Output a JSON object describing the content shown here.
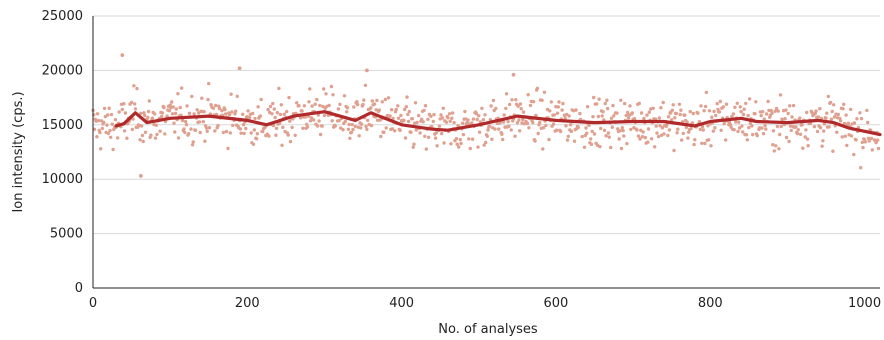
{
  "chart_data": {
    "type": "scatter",
    "title": "",
    "xlabel": "No. of analyses",
    "ylabel": "Ion intensity (cps.)",
    "xlim": [
      0,
      1020
    ],
    "ylim": [
      0,
      25000
    ],
    "x_ticks": [
      0,
      200,
      400,
      600,
      800,
      1000
    ],
    "y_ticks": [
      0,
      5000,
      10000,
      15000,
      20000,
      25000
    ],
    "x_tick_labels": [
      "0",
      "200",
      "400",
      "600",
      "800",
      "1000"
    ],
    "y_tick_labels": [
      "0",
      "5000",
      "10000",
      "15000",
      "20000",
      "25000"
    ],
    "grid": "horizontal",
    "legend": "none",
    "colors": {
      "points": "#dfa08f",
      "trend": "#b0292b",
      "grid": "#d9d9d9",
      "axis": "#222222"
    },
    "series": [
      {
        "type": "scatter",
        "n_points": 1020,
        "mean": 15200,
        "spread": 1350,
        "outliers": [
          {
            "x": 38,
            "y": 21400
          },
          {
            "x": 62,
            "y": 10300
          },
          {
            "x": 190,
            "y": 20200
          },
          {
            "x": 355,
            "y": 20000
          },
          {
            "x": 545,
            "y": 19600
          }
        ]
      },
      {
        "type": "line",
        "x": [
          30,
          40,
          55,
          70,
          100,
          150,
          200,
          225,
          260,
          300,
          320,
          340,
          360,
          400,
          440,
          460,
          500,
          550,
          600,
          650,
          700,
          740,
          780,
          800,
          840,
          860,
          900,
          940,
          960,
          980,
          1020
        ],
        "y": [
          14900,
          15100,
          16100,
          15200,
          15600,
          15800,
          15400,
          15000,
          15800,
          16200,
          15800,
          15400,
          16100,
          15000,
          14600,
          14500,
          15000,
          15800,
          15400,
          15200,
          15300,
          15300,
          14900,
          15300,
          15600,
          15300,
          15200,
          15400,
          15200,
          14700,
          14100
        ]
      }
    ]
  }
}
